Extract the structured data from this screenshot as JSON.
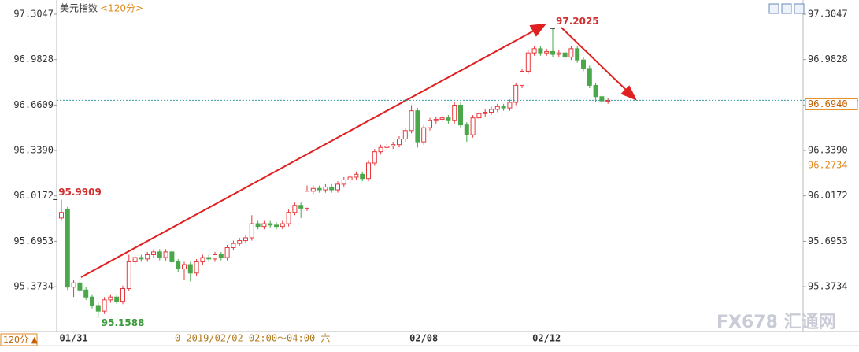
{
  "chart_data": {
    "type": "candlestick",
    "title": "美元指数",
    "subtitle": "<120分>",
    "up_color": "#e8383d",
    "down_color": "#4aa84a",
    "categories": [
      null,
      null,
      "01/31",
      null,
      null,
      null,
      null,
      null,
      null,
      null,
      null,
      null,
      null,
      null,
      null,
      null,
      null,
      null,
      null,
      null,
      null,
      null,
      null,
      null,
      null,
      null,
      null,
      null,
      null,
      null,
      null,
      null,
      null,
      null,
      null,
      null,
      null,
      null,
      null,
      null,
      null,
      null,
      null,
      null,
      null,
      null,
      null,
      null,
      null,
      null,
      null,
      null,
      null,
      null,
      null,
      null,
      null,
      null,
      null,
      "02/08",
      null,
      null,
      null,
      null,
      null,
      null,
      null,
      null,
      null,
      null,
      null,
      null,
      null,
      null,
      null,
      null,
      null,
      null,
      null,
      "02/12",
      null,
      null,
      null,
      null,
      null,
      null,
      null,
      null,
      null,
      null
    ],
    "open": [
      95.86,
      95.92,
      95.37,
      95.4,
      95.35,
      95.3,
      95.24,
      95.2,
      95.28,
      95.3,
      95.27,
      95.36,
      95.55,
      95.58,
      95.57,
      95.6,
      95.62,
      95.58,
      95.62,
      95.55,
      95.5,
      95.53,
      95.47,
      95.55,
      95.58,
      95.57,
      95.6,
      95.58,
      95.65,
      95.68,
      95.7,
      95.72,
      95.82,
      95.8,
      95.82,
      95.81,
      95.8,
      95.82,
      95.9,
      95.95,
      95.93,
      96.05,
      96.07,
      96.06,
      96.08,
      96.06,
      96.1,
      96.13,
      96.15,
      96.17,
      96.14,
      96.25,
      96.33,
      96.36,
      96.37,
      96.38,
      96.42,
      96.48,
      96.62,
      96.4,
      96.5,
      96.55,
      96.56,
      96.57,
      96.55,
      96.66,
      96.52,
      96.45,
      96.57,
      96.6,
      96.61,
      96.63,
      96.65,
      96.64,
      96.68,
      96.8,
      96.9,
      97.03,
      97.06,
      97.03,
      97.04,
      97.02,
      97.03,
      97.0,
      97.06,
      96.98,
      96.92,
      96.8,
      96.72,
      96.69
    ],
    "high": [
      95.99,
      95.94,
      95.42,
      95.42,
      95.37,
      95.32,
      95.26,
      95.3,
      95.32,
      95.32,
      95.38,
      95.6,
      95.6,
      95.6,
      95.62,
      95.64,
      95.64,
      95.64,
      95.64,
      95.57,
      95.55,
      95.55,
      95.57,
      95.6,
      95.6,
      95.62,
      95.62,
      95.67,
      95.7,
      95.72,
      95.74,
      95.88,
      95.84,
      95.84,
      95.84,
      95.83,
      95.84,
      95.92,
      95.97,
      95.97,
      96.09,
      96.09,
      96.09,
      96.1,
      96.1,
      96.12,
      96.15,
      96.17,
      96.19,
      96.19,
      96.27,
      96.35,
      96.38,
      96.39,
      96.4,
      96.44,
      96.5,
      96.66,
      96.64,
      96.52,
      96.57,
      96.58,
      96.59,
      96.59,
      96.68,
      96.68,
      96.54,
      96.59,
      96.62,
      96.63,
      96.65,
      96.67,
      96.67,
      96.7,
      96.82,
      96.92,
      97.05,
      97.08,
      97.08,
      97.06,
      97.2025,
      97.05,
      97.05,
      97.08,
      97.08,
      97.0,
      96.94,
      96.82,
      96.74,
      96.71
    ],
    "low": [
      95.84,
      95.35,
      95.3,
      95.33,
      95.28,
      95.22,
      95.1588,
      95.18,
      95.26,
      95.25,
      95.25,
      95.34,
      95.53,
      95.55,
      95.55,
      95.58,
      95.56,
      95.56,
      95.53,
      95.48,
      95.42,
      95.41,
      95.45,
      95.53,
      95.55,
      95.55,
      95.56,
      95.56,
      95.63,
      95.66,
      95.68,
      95.7,
      95.78,
      95.78,
      95.79,
      95.78,
      95.78,
      95.8,
      95.88,
      95.86,
      95.91,
      96.03,
      96.04,
      96.04,
      96.04,
      96.04,
      96.08,
      96.11,
      96.13,
      96.12,
      96.12,
      96.23,
      96.31,
      96.34,
      96.35,
      96.36,
      96.4,
      96.46,
      96.36,
      96.38,
      96.48,
      96.53,
      96.54,
      96.53,
      96.53,
      96.5,
      96.4,
      96.43,
      96.55,
      96.58,
      96.59,
      96.61,
      96.62,
      96.62,
      96.66,
      96.78,
      96.88,
      97.01,
      97.01,
      97.01,
      97.0,
      97.0,
      96.98,
      96.98,
      96.96,
      96.9,
      96.78,
      96.68,
      96.67,
      96.67
    ],
    "close": [
      95.9,
      95.37,
      95.4,
      95.35,
      95.3,
      95.24,
      95.2,
      95.28,
      95.3,
      95.27,
      95.36,
      95.55,
      95.58,
      95.57,
      95.6,
      95.62,
      95.58,
      95.62,
      95.55,
      95.5,
      95.53,
      95.47,
      95.55,
      95.58,
      95.57,
      95.6,
      95.58,
      95.65,
      95.68,
      95.7,
      95.72,
      95.82,
      95.8,
      95.82,
      95.81,
      95.8,
      95.82,
      95.9,
      95.95,
      95.93,
      96.05,
      96.07,
      96.06,
      96.08,
      96.06,
      96.1,
      96.13,
      96.15,
      96.17,
      96.14,
      96.25,
      96.33,
      96.36,
      96.37,
      96.38,
      96.42,
      96.48,
      96.62,
      96.4,
      96.5,
      96.55,
      96.56,
      96.57,
      96.55,
      96.66,
      96.52,
      96.45,
      96.57,
      96.6,
      96.61,
      96.63,
      96.65,
      96.64,
      96.68,
      96.8,
      96.9,
      97.03,
      97.06,
      97.03,
      97.04,
      97.02,
      97.03,
      97.0,
      97.06,
      96.98,
      96.92,
      96.8,
      96.72,
      96.69,
      96.694
    ],
    "ylim": [
      95.0614,
      97.3772
    ],
    "yticks": [
      97.3047,
      96.9828,
      96.6609,
      {
        "value": 96.339,
        "label": "96.3390"
      },
      96.0172,
      95.6953,
      95.3734
    ],
    "last_price": {
      "value": 96.694,
      "label": "96.6940"
    },
    "marker_price": 96.2734,
    "high_annotations": [
      95.9909,
      97.2025
    ],
    "low_annotations": [
      95.1588
    ],
    "cursor_time": "0 2019/02/02 02:00～04:00 六",
    "period_button": "120分 ▲",
    "watermark": "FX678 汇通网"
  }
}
